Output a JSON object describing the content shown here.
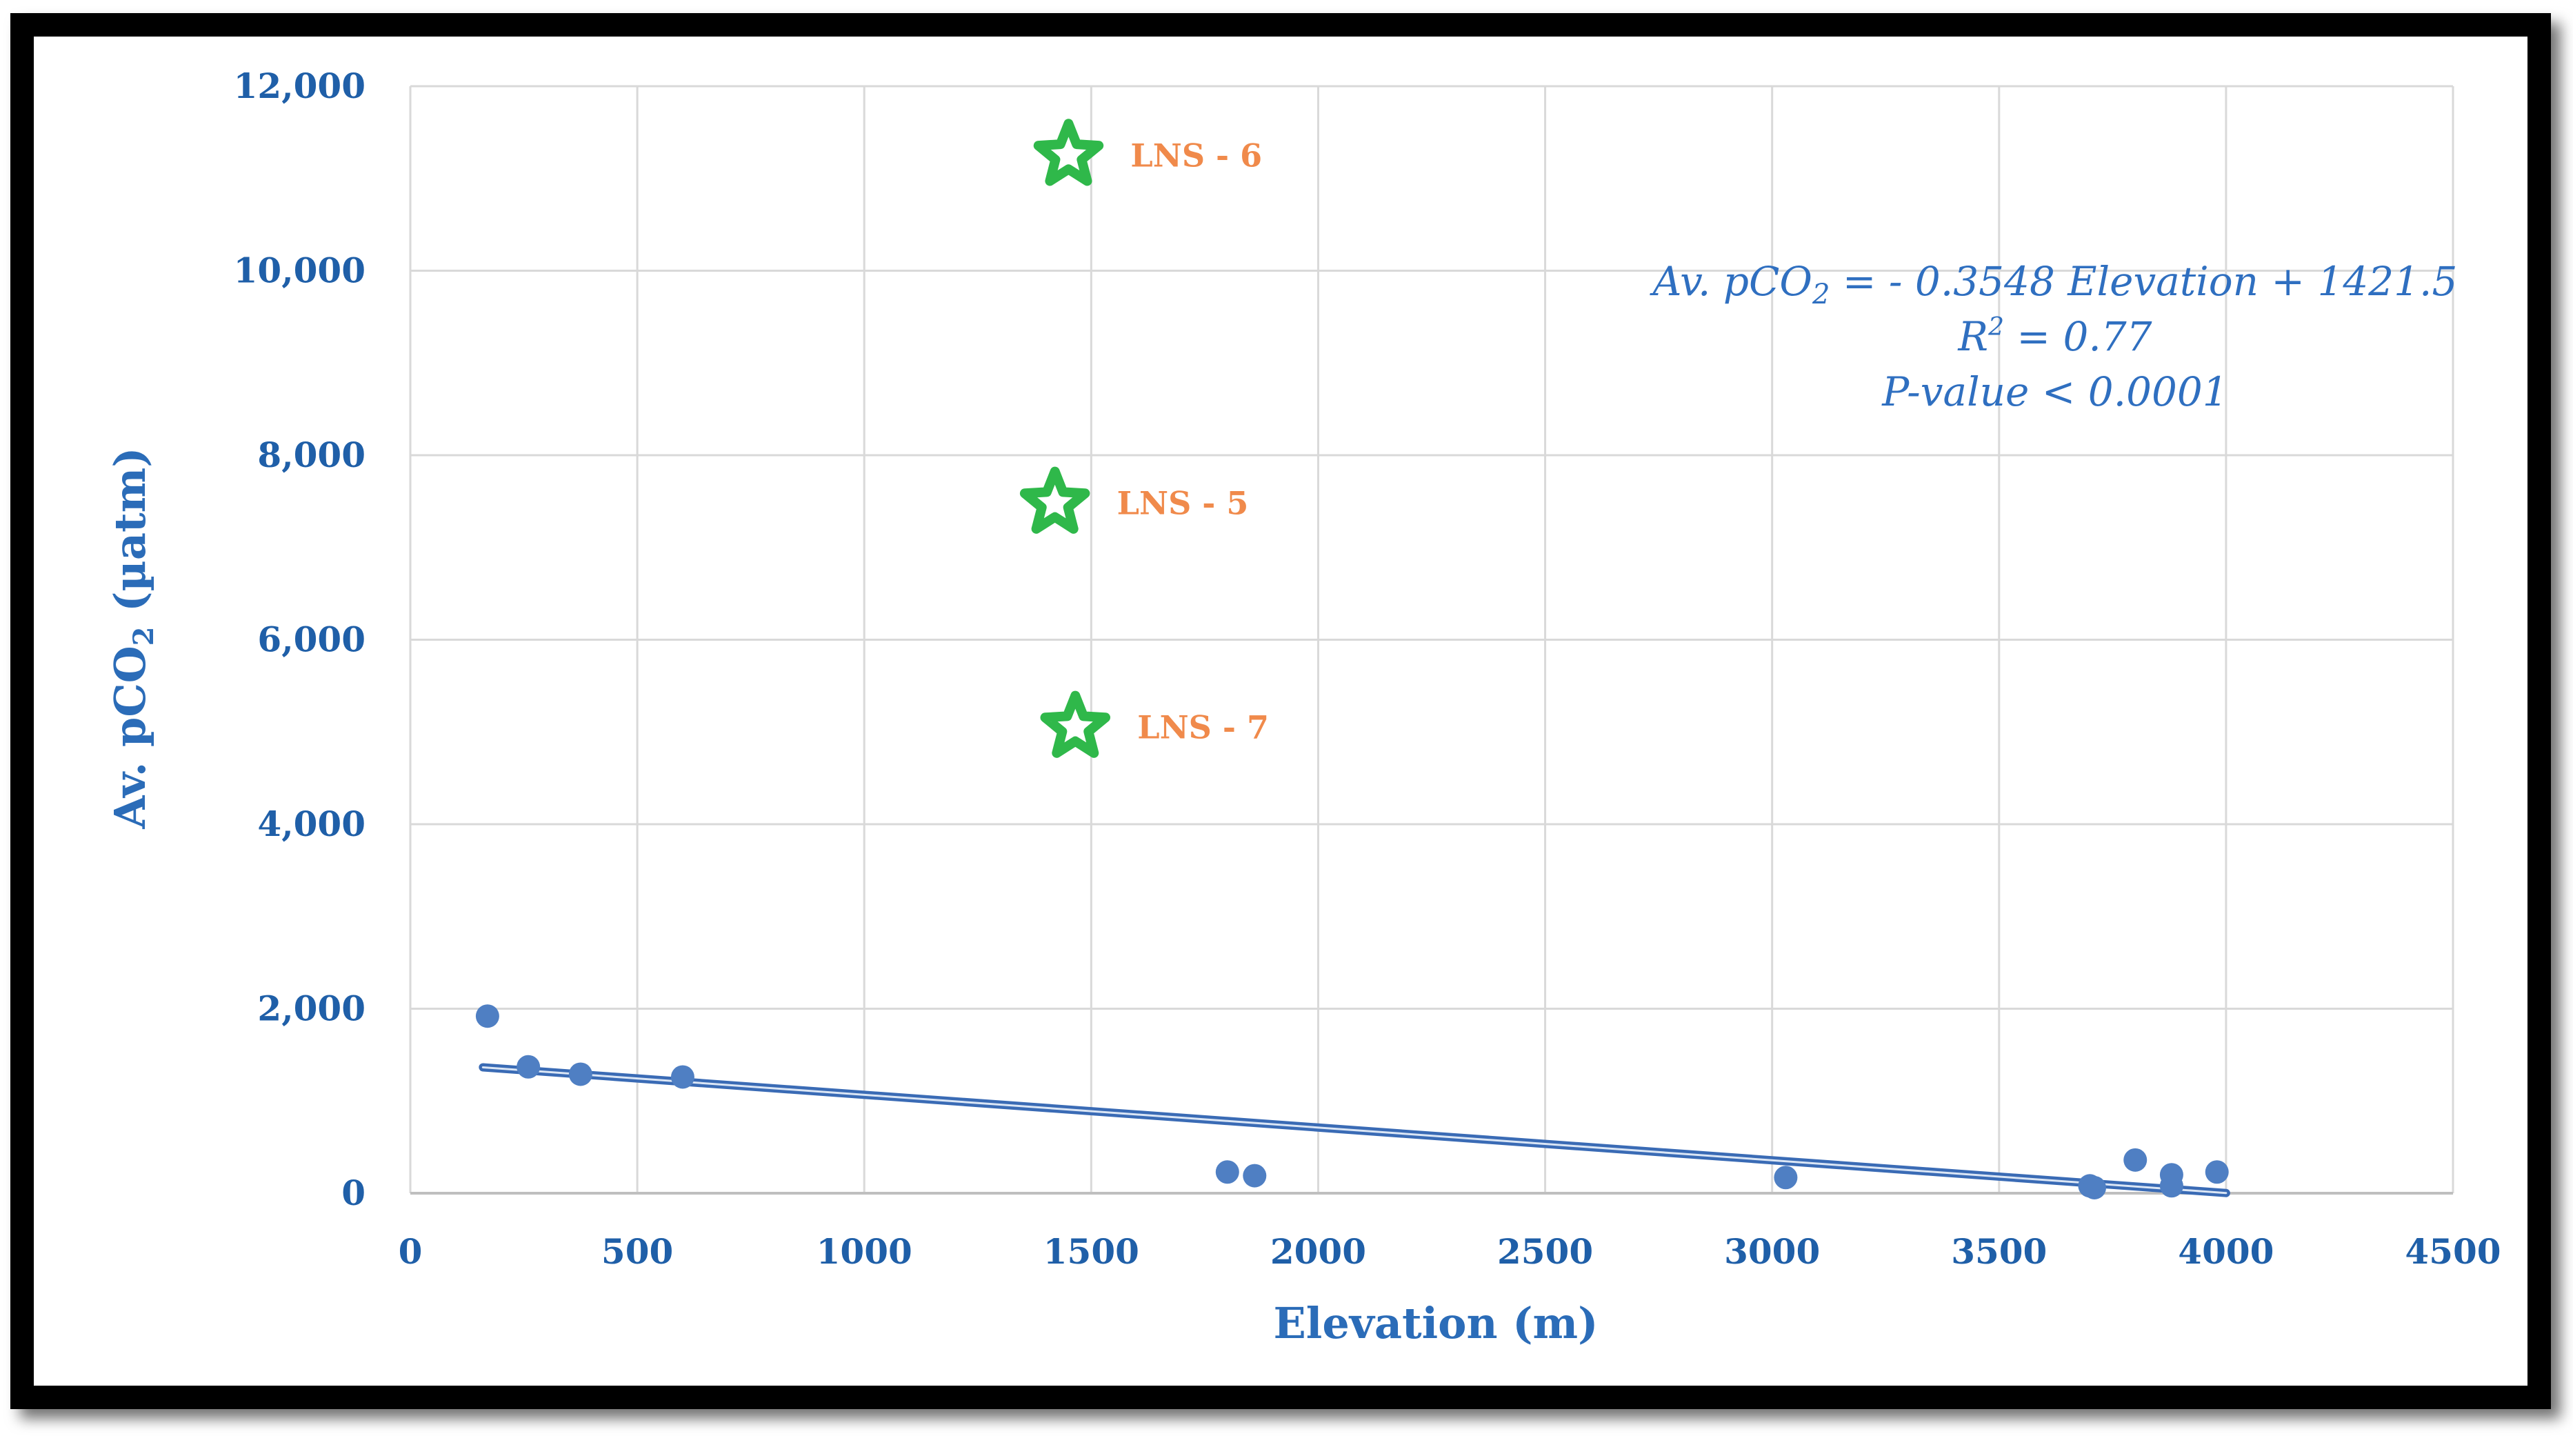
{
  "chart_data": {
    "type": "scatter",
    "xlabel": "Elevation  (m)",
    "ylabel_main": "Av. pCO",
    "ylabel_sub": "2",
    "ylabel_unit": " (µatm)",
    "xlim": [
      0,
      4500
    ],
    "ylim": [
      0,
      12000
    ],
    "x_ticks": [
      0,
      500,
      1000,
      1500,
      2000,
      2500,
      3000,
      3500,
      4000,
      4500
    ],
    "y_ticks": [
      0,
      2000,
      4000,
      6000,
      8000,
      10000,
      12000
    ],
    "y_tick_labels": [
      "0",
      "2,000",
      "4,000",
      "6,000",
      "8,000",
      "10,000",
      "12,000"
    ],
    "grid": true,
    "colors": {
      "points": "#4f7fc3",
      "stars": "#2fb84a",
      "trend": "#3a6bb5",
      "labels": "#f08a4b",
      "axis_text": "#1f5fa8"
    },
    "points": [
      {
        "x": 170,
        "y": 1920
      },
      {
        "x": 260,
        "y": 1370
      },
      {
        "x": 375,
        "y": 1290
      },
      {
        "x": 600,
        "y": 1260
      },
      {
        "x": 1800,
        "y": 230
      },
      {
        "x": 1860,
        "y": 190
      },
      {
        "x": 3030,
        "y": 170
      },
      {
        "x": 3700,
        "y": 80
      },
      {
        "x": 3710,
        "y": 60
      },
      {
        "x": 3800,
        "y": 360
      },
      {
        "x": 3880,
        "y": 200
      },
      {
        "x": 3880,
        "y": 80
      },
      {
        "x": 3980,
        "y": 230
      }
    ],
    "stars": [
      {
        "x": 1450,
        "y": 11250,
        "label": "LNS - 6"
      },
      {
        "x": 1420,
        "y": 7480,
        "label": "LNS - 5"
      },
      {
        "x": 1465,
        "y": 5050,
        "label": "LNS - 7"
      }
    ],
    "trendline": {
      "slope": -0.3548,
      "intercept": 1421.5,
      "x_range": [
        160,
        4000
      ]
    },
    "annotation": {
      "line1_a": "Av. pCO",
      "line1_sub": "2",
      "line1_b": " = - 0.3548 Elevation + 1421.5",
      "line2_a": "R",
      "line2_sup": "2",
      "line2_b": " = 0.77",
      "line3": "P-value  < 0.0001"
    }
  }
}
